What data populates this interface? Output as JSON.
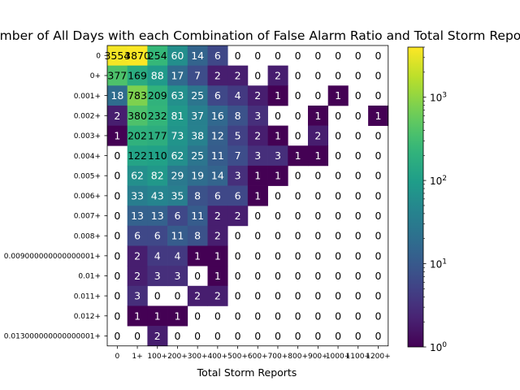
{
  "chart_data": {
    "type": "heatmap",
    "title": "Number of All Days with each Combination of False Alarm Ratio and Total Storm Reports",
    "xlabel": "Total Storm Reports",
    "ylabel": "",
    "x_categories": [
      "0",
      "1+",
      "100+",
      "200+",
      "300+",
      "400+",
      "500+",
      "600+",
      "700+",
      "800+",
      "900+",
      "1000+",
      "1100+",
      "1200+"
    ],
    "y_categories": [
      "0",
      "0+",
      "0.001+",
      "0.002+",
      "0.003+",
      "0.004+",
      "0.005+",
      "0.006+",
      "0.007+",
      "0.008+",
      "0.009000000000000001+",
      "0.01+",
      "0.011+",
      "0.012+",
      "0.013000000000000001+"
    ],
    "values": [
      [
        3554,
        3870,
        254,
        60,
        14,
        6,
        0,
        0,
        0,
        0,
        0,
        0,
        0,
        0
      ],
      [
        377,
        169,
        88,
        17,
        7,
        2,
        2,
        0,
        2,
        0,
        0,
        0,
        0,
        0
      ],
      [
        18,
        783,
        209,
        63,
        25,
        6,
        4,
        2,
        1,
        0,
        0,
        1,
        0,
        0
      ],
      [
        2,
        380,
        232,
        81,
        37,
        16,
        8,
        3,
        0,
        0,
        1,
        0,
        0,
        1
      ],
      [
        1,
        202,
        177,
        73,
        38,
        12,
        5,
        2,
        1,
        0,
        2,
        0,
        0,
        0
      ],
      [
        0,
        122,
        110,
        62,
        25,
        11,
        7,
        3,
        3,
        1,
        1,
        0,
        0,
        0
      ],
      [
        0,
        62,
        82,
        29,
        19,
        14,
        3,
        1,
        1,
        0,
        0,
        0,
        0,
        0
      ],
      [
        0,
        33,
        43,
        35,
        8,
        6,
        6,
        1,
        0,
        0,
        0,
        0,
        0,
        0
      ],
      [
        0,
        13,
        13,
        6,
        11,
        2,
        2,
        0,
        0,
        0,
        0,
        0,
        0,
        0
      ],
      [
        0,
        6,
        6,
        11,
        8,
        2,
        0,
        0,
        0,
        0,
        0,
        0,
        0,
        0
      ],
      [
        0,
        2,
        4,
        4,
        1,
        1,
        0,
        0,
        0,
        0,
        0,
        0,
        0,
        0
      ],
      [
        0,
        2,
        3,
        3,
        0,
        1,
        0,
        0,
        0,
        0,
        0,
        0,
        0,
        0
      ],
      [
        0,
        3,
        0,
        0,
        2,
        2,
        0,
        0,
        0,
        0,
        0,
        0,
        0,
        0
      ],
      [
        0,
        1,
        1,
        1,
        0,
        0,
        0,
        0,
        0,
        0,
        0,
        0,
        0,
        0
      ],
      [
        0,
        0,
        2,
        0,
        0,
        0,
        0,
        0,
        0,
        0,
        0,
        0,
        0,
        0
      ]
    ],
    "colorscale": "viridis",
    "color_norm": "log",
    "clim": [
      1,
      4000
    ],
    "colorbar_ticks": [
      {
        "value": 1,
        "base": "10",
        "exp": "0"
      },
      {
        "value": 10,
        "base": "10",
        "exp": "1"
      },
      {
        "value": 100,
        "base": "10",
        "exp": "2"
      },
      {
        "value": 1000,
        "base": "10",
        "exp": "3"
      }
    ],
    "zero_cells": "blank",
    "colors": {
      "light_text": "#ffffff",
      "dark_text": "#000000",
      "background": "#ffffff"
    }
  }
}
